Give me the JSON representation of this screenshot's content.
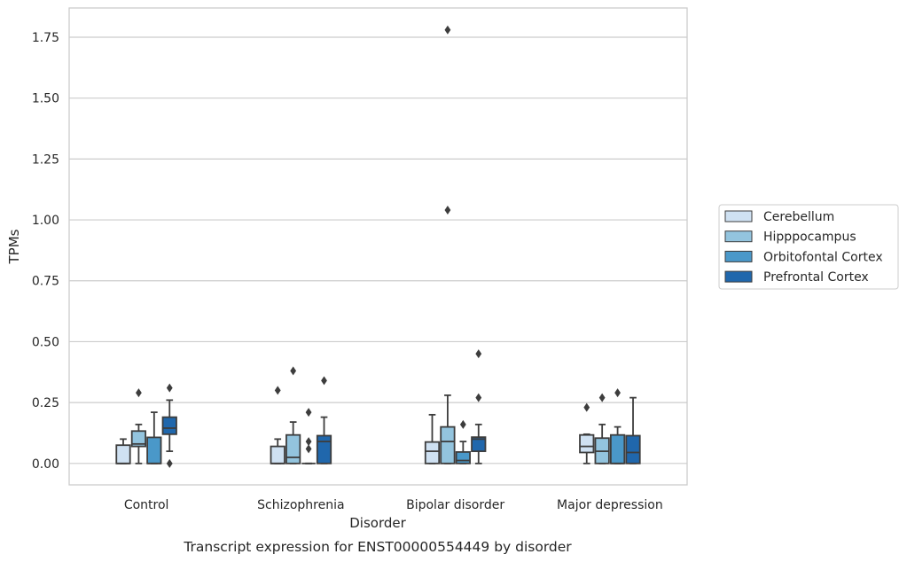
{
  "chart_data": {
    "type": "box",
    "categories": [
      "Control",
      "Schizophrenia",
      "Bipolar disorder",
      "Major depression"
    ],
    "xlabel": "Disorder",
    "ylabel": "TPMs",
    "caption": "Transcript expression for ENST00000554449 by disorder",
    "ylim": [
      -0.088,
      1.87
    ],
    "yticks": [
      "0.00",
      "0.25",
      "0.50",
      "0.75",
      "1.00",
      "1.25",
      "1.50",
      "1.75"
    ],
    "grid": "horizontal",
    "legend_position": "right",
    "series": [
      {
        "name": "Cerebellum",
        "color": "#cfe1f2",
        "boxes": [
          {
            "q1": 0.0,
            "median": 0.0,
            "q3": 0.075,
            "whisker_low": 0.0,
            "whisker_high": 0.1,
            "outliers": []
          },
          {
            "q1": 0.0,
            "median": 0.0,
            "q3": 0.07,
            "whisker_low": 0.0,
            "whisker_high": 0.1,
            "outliers": [
              0.3
            ]
          },
          {
            "q1": 0.0,
            "median": 0.05,
            "q3": 0.088,
            "whisker_low": 0.0,
            "whisker_high": 0.2,
            "outliers": []
          },
          {
            "q1": 0.045,
            "median": 0.07,
            "q3": 0.117,
            "whisker_low": 0.0,
            "whisker_high": 0.12,
            "outliers": [
              0.23
            ]
          }
        ]
      },
      {
        "name": "Hipppocampus",
        "color": "#93c4de",
        "boxes": [
          {
            "q1": 0.07,
            "median": 0.08,
            "q3": 0.133,
            "whisker_low": 0.0,
            "whisker_high": 0.16,
            "outliers": [
              0.29
            ]
          },
          {
            "q1": 0.0,
            "median": 0.025,
            "q3": 0.117,
            "whisker_low": 0.0,
            "whisker_high": 0.17,
            "outliers": [
              0.38
            ]
          },
          {
            "q1": 0.0,
            "median": 0.09,
            "q3": 0.15,
            "whisker_low": 0.0,
            "whisker_high": 0.28,
            "outliers": [
              1.04,
              1.78
            ]
          },
          {
            "q1": 0.0,
            "median": 0.05,
            "q3": 0.104,
            "whisker_low": 0.0,
            "whisker_high": 0.16,
            "outliers": [
              0.27
            ]
          }
        ]
      },
      {
        "name": "Orbitofontal Cortex",
        "color": "#4a98c9",
        "boxes": [
          {
            "q1": 0.0,
            "median": 0.0,
            "q3": 0.107,
            "whisker_low": 0.0,
            "whisker_high": 0.21,
            "outliers": []
          },
          {
            "q1": 0.0,
            "median": 0.0,
            "q3": 0.0,
            "whisker_low": 0.0,
            "whisker_high": 0.0,
            "outliers": [
              0.06,
              0.09,
              0.21
            ]
          },
          {
            "q1": 0.0,
            "median": 0.012,
            "q3": 0.047,
            "whisker_low": 0.0,
            "whisker_high": 0.09,
            "outliers": [
              0.16
            ]
          },
          {
            "q1": 0.0,
            "median": 0.0,
            "q3": 0.117,
            "whisker_low": 0.0,
            "whisker_high": 0.15,
            "outliers": [
              0.29
            ]
          }
        ]
      },
      {
        "name": "Prefrontal Cortex",
        "color": "#2067ac",
        "boxes": [
          {
            "q1": 0.12,
            "median": 0.145,
            "q3": 0.19,
            "whisker_low": 0.05,
            "whisker_high": 0.26,
            "outliers": [
              0.31,
              0.0
            ]
          },
          {
            "q1": 0.0,
            "median": 0.09,
            "q3": 0.114,
            "whisker_low": 0.0,
            "whisker_high": 0.19,
            "outliers": [
              0.34
            ]
          },
          {
            "q1": 0.05,
            "median": 0.1,
            "q3": 0.108,
            "whisker_low": 0.0,
            "whisker_high": 0.16,
            "outliers": [
              0.27,
              0.45
            ]
          },
          {
            "q1": 0.0,
            "median": 0.045,
            "q3": 0.114,
            "whisker_low": 0.0,
            "whisker_high": 0.27,
            "outliers": []
          }
        ]
      }
    ]
  }
}
